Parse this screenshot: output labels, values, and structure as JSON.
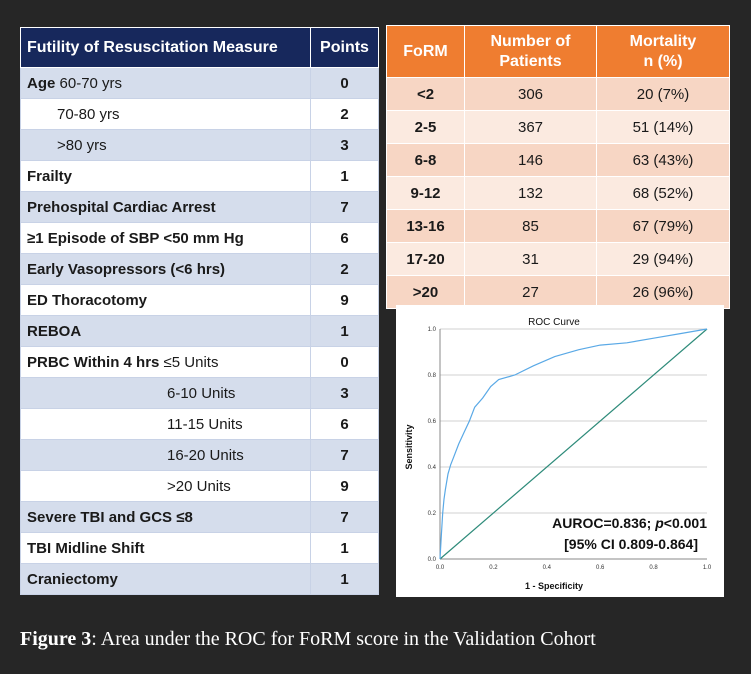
{
  "left_table": {
    "header": {
      "measure": "Futility of Resuscitation Measure",
      "points": "Points"
    },
    "rows": [
      {
        "label_bold": "Age",
        "label": " 60-70 yrs",
        "points": "0",
        "indent": 0
      },
      {
        "label_bold": "",
        "label": "70-80 yrs",
        "points": "2",
        "indent": 1
      },
      {
        "label_bold": "",
        "label": ">80 yrs",
        "points": "3",
        "indent": 1
      },
      {
        "label_bold": "Frailty",
        "label": "",
        "points": "1",
        "indent": 0
      },
      {
        "label_bold": "Prehospital Cardiac Arrest",
        "label": "",
        "points": "7",
        "indent": 0
      },
      {
        "label_bold": "≥1 Episode of SBP <50 mm Hg",
        "label": "",
        "points": "6",
        "indent": 0
      },
      {
        "label_bold": "Early Vasopressors (<6 hrs)",
        "label": "",
        "points": "2",
        "indent": 0
      },
      {
        "label_bold": "ED Thoracotomy",
        "label": "",
        "points": "9",
        "indent": 0
      },
      {
        "label_bold": "REBOA",
        "label": "",
        "points": "1",
        "indent": 0
      },
      {
        "label_bold": "PRBC Within 4 hrs",
        "label": " ≤5 Units",
        "points": "0",
        "indent": 0
      },
      {
        "label_bold": "",
        "label": "6-10 Units",
        "points": "3",
        "indent": 2
      },
      {
        "label_bold": "",
        "label": "11-15 Units",
        "points": "6",
        "indent": 2
      },
      {
        "label_bold": "",
        "label": "16-20 Units",
        "points": "7",
        "indent": 2
      },
      {
        "label_bold": "",
        "label": ">20 Units",
        "points": "9",
        "indent": 2
      },
      {
        "label_bold": "Severe TBI and GCS ≤8",
        "label": "",
        "points": "7",
        "indent": 0
      },
      {
        "label_bold": "TBI Midline Shift",
        "label": "",
        "points": "1",
        "indent": 0
      },
      {
        "label_bold": "Craniectomy",
        "label": "",
        "points": "1",
        "indent": 0
      }
    ]
  },
  "form_table": {
    "header": {
      "form": "FoRM",
      "patients_1": "Number of",
      "patients_2": "Patients",
      "mortality_1": "Mortality",
      "mortality_2": "n (%)"
    },
    "rows": [
      {
        "form": "<2",
        "patients": "306",
        "mortality": "20 (7%)"
      },
      {
        "form": "2-5",
        "patients": "367",
        "mortality": "51 (14%)"
      },
      {
        "form": "6-8",
        "patients": "146",
        "mortality": "63 (43%)"
      },
      {
        "form": "9-12",
        "patients": "132",
        "mortality": "68 (52%)"
      },
      {
        "form": "13-16",
        "patients": "85",
        "mortality": "67 (79%)"
      },
      {
        "form": "17-20",
        "patients": "31",
        "mortality": "29 (94%)"
      },
      {
        "form": ">20",
        "patients": "27",
        "mortality": "26 (96%)"
      }
    ]
  },
  "chart_data": {
    "type": "line",
    "title": "ROC Curve",
    "xlabel": "1 - Specificity",
    "ylabel": "Sensitivity",
    "xlim": [
      0,
      1
    ],
    "ylim": [
      0,
      1
    ],
    "xticks": [
      "0.0",
      "0.2",
      "0.4",
      "0.6",
      "0.8",
      "1.0"
    ],
    "yticks": [
      "0.0",
      "0.2",
      "0.4",
      "0.6",
      "0.8",
      "1.0"
    ],
    "grid": true,
    "series": [
      {
        "color": "#5aa9e6",
        "x": [
          0.0,
          0.005,
          0.01,
          0.015,
          0.02,
          0.03,
          0.04,
          0.05,
          0.07,
          0.09,
          0.11,
          0.13,
          0.16,
          0.19,
          0.22,
          0.28,
          0.35,
          0.43,
          0.52,
          0.6,
          0.7,
          0.8,
          0.9,
          1.0
        ],
        "y": [
          0.0,
          0.1,
          0.2,
          0.26,
          0.3,
          0.37,
          0.41,
          0.44,
          0.5,
          0.55,
          0.6,
          0.66,
          0.7,
          0.75,
          0.78,
          0.8,
          0.84,
          0.88,
          0.91,
          0.93,
          0.94,
          0.96,
          0.98,
          1.0
        ]
      },
      {
        "color": "#2e8b7a",
        "x": [
          0.0,
          1.0
        ],
        "y": [
          0.0,
          1.0
        ]
      }
    ],
    "annotation_1": "AUROC=0.836; ",
    "annotation_p": "p",
    "annotation_2": "<0.001",
    "annotation_ci": "[95% CI 0.809-0.864]"
  },
  "caption": {
    "figure": "Figure 3",
    "text": ": Area under the ROC for FoRM score in the Validation Cohort"
  }
}
